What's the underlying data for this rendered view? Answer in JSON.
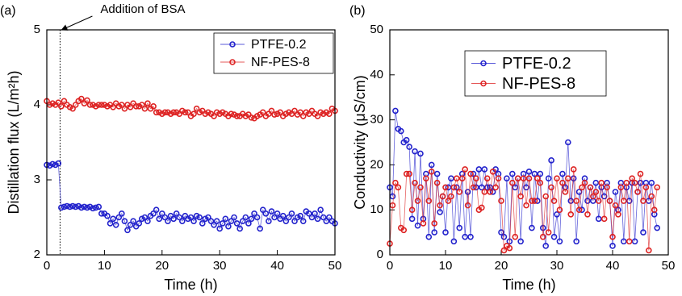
{
  "chart_data": [
    {
      "type": "line",
      "panel_label": "(a)",
      "xlabel": "Time (h)",
      "ylabel": "Distillation flux (L/m²h)",
      "xlim": [
        0,
        50
      ],
      "xticks": [
        0,
        10,
        20,
        30,
        40,
        50
      ],
      "ylim": [
        2,
        5
      ],
      "yticks": [
        2,
        3,
        4,
        5
      ],
      "legend": "upper right",
      "annotations": [
        {
          "text": "Addition of BSA",
          "x": 2.3
        }
      ],
      "x": [
        0,
        0.5,
        1,
        1.5,
        2,
        2.5,
        3,
        3.5,
        4,
        4.5,
        5,
        5.5,
        6,
        6.5,
        7,
        7.5,
        8,
        8.5,
        9,
        9.5,
        10,
        10.5,
        11,
        11.5,
        12,
        12.5,
        13,
        13.5,
        14,
        14.5,
        15,
        15.5,
        16,
        16.5,
        17,
        17.5,
        18,
        18.5,
        19,
        19.5,
        20,
        20.5,
        21,
        21.5,
        22,
        22.5,
        23,
        23.5,
        24,
        24.5,
        25,
        25.5,
        26,
        26.5,
        27,
        27.5,
        28,
        28.5,
        29,
        29.5,
        30,
        30.5,
        31,
        31.5,
        32,
        32.5,
        33,
        33.5,
        34,
        34.5,
        35,
        35.5,
        36,
        36.5,
        37,
        37.5,
        38,
        38.5,
        39,
        39.5,
        40,
        40.5,
        41,
        41.5,
        42,
        42.5,
        43,
        43.5,
        44,
        44.5,
        45,
        45.5,
        46,
        46.5,
        47,
        47.5,
        48,
        48.5,
        49,
        49.5,
        50
      ],
      "series": [
        {
          "name": "PTFE-0.2",
          "color": "#2222cc",
          "values": [
            3.2,
            3.19,
            3.21,
            3.2,
            3.22,
            2.63,
            2.64,
            2.65,
            2.64,
            2.65,
            2.64,
            2.65,
            2.63,
            2.64,
            2.63,
            2.64,
            2.62,
            2.63,
            2.64,
            2.55,
            2.55,
            2.52,
            2.42,
            2.48,
            2.4,
            2.5,
            2.55,
            2.45,
            2.33,
            2.4,
            2.45,
            2.38,
            2.42,
            2.48,
            2.5,
            2.45,
            2.52,
            2.55,
            2.6,
            2.48,
            2.55,
            2.5,
            2.45,
            2.52,
            2.48,
            2.55,
            2.5,
            2.45,
            2.52,
            2.48,
            2.5,
            2.45,
            2.52,
            2.5,
            2.42,
            2.48,
            2.5,
            2.45,
            2.4,
            2.45,
            2.35,
            2.42,
            2.48,
            2.38,
            2.45,
            2.5,
            2.42,
            2.35,
            2.45,
            2.5,
            2.42,
            2.48,
            2.55,
            2.5,
            2.35,
            2.6,
            2.55,
            2.45,
            2.58,
            2.5,
            2.55,
            2.48,
            2.52,
            2.45,
            2.5,
            2.55,
            2.45,
            2.5,
            2.52,
            2.45,
            2.58,
            2.55,
            2.5,
            2.55,
            2.48,
            2.6,
            2.5,
            2.45,
            2.5,
            2.45,
            2.42
          ]
        },
        {
          "name": "NF-PES-8",
          "color": "#dd2222",
          "values": [
            4.05,
            4.0,
            4.02,
            4.0,
            4.03,
            3.98,
            4.05,
            4.0,
            3.97,
            3.95,
            4.0,
            4.05,
            4.08,
            4.02,
            4.06,
            4.0,
            4.0,
            3.98,
            4.0,
            4.0,
            4.0,
            3.98,
            4.0,
            3.97,
            4.02,
            3.98,
            4.0,
            3.95,
            4.0,
            3.97,
            4.02,
            3.98,
            3.98,
            4.0,
            3.95,
            4.02,
            3.95,
            3.98,
            3.9,
            3.9,
            3.88,
            3.9,
            3.9,
            3.88,
            3.9,
            3.9,
            3.88,
            3.92,
            3.9,
            3.9,
            3.85,
            3.88,
            3.95,
            3.9,
            3.92,
            3.88,
            3.9,
            3.88,
            3.85,
            3.9,
            3.88,
            3.9,
            3.88,
            3.85,
            3.88,
            3.87,
            3.85,
            3.85,
            3.88,
            3.85,
            3.87,
            3.83,
            3.82,
            3.85,
            3.87,
            3.9,
            3.85,
            3.88,
            3.92,
            3.87,
            3.88,
            3.9,
            3.85,
            3.88,
            3.9,
            3.88,
            3.92,
            3.87,
            3.9,
            3.85,
            3.9,
            3.88,
            3.92,
            3.88,
            3.85,
            3.9,
            3.88,
            3.9,
            3.88,
            3.95,
            3.92
          ]
        }
      ]
    },
    {
      "type": "line",
      "panel_label": "(b)",
      "xlabel": "Time (h)",
      "ylabel": "Conductivity (μS/cm)",
      "xlim": [
        0,
        50
      ],
      "xticks": [
        0,
        10,
        20,
        30,
        40,
        50
      ],
      "ylim": [
        0,
        50
      ],
      "yticks": [
        0,
        10,
        20,
        30,
        40,
        50
      ],
      "legend": "upper center",
      "x": [
        0,
        0.5,
        1,
        1.5,
        2,
        2.5,
        3,
        3.5,
        4,
        4.5,
        5,
        5.5,
        6,
        6.5,
        7,
        7.5,
        8,
        8.5,
        9,
        9.5,
        10,
        10.5,
        11,
        11.5,
        12,
        12.5,
        13,
        13.5,
        14,
        14.5,
        15,
        15.5,
        16,
        16.5,
        17,
        17.5,
        18,
        18.5,
        19,
        19.5,
        20,
        20.5,
        21,
        21.5,
        22,
        22.5,
        23,
        23.5,
        24,
        24.5,
        25,
        25.5,
        26,
        26.5,
        27,
        27.5,
        28,
        28.5,
        29,
        29.5,
        30,
        30.5,
        31,
        31.5,
        32,
        32.5,
        33,
        33.5,
        34,
        34.5,
        35,
        35.5,
        36,
        36.5,
        37,
        37.5,
        38,
        38.5,
        39,
        39.5,
        40,
        40.5,
        41,
        41.5,
        42,
        42.5,
        43,
        43.5,
        44,
        44.5,
        45,
        45.5,
        46,
        46.5,
        47,
        47.5,
        48
      ],
      "series": [
        {
          "name": "PTFE-0.2",
          "color": "#2222cc",
          "values": [
            15,
            13,
            32,
            28,
            27.5,
            25,
            25.5,
            24,
            8,
            23,
            6.5,
            22.5,
            8,
            18,
            4,
            20,
            5,
            18,
            9.5,
            13,
            5,
            15,
            17,
            3,
            15,
            6,
            18,
            4,
            14,
            4,
            18,
            15,
            19,
            15,
            19,
            15,
            15,
            14,
            19,
            18,
            5,
            4,
            17,
            3,
            18,
            15,
            17,
            3,
            18,
            15,
            18.5,
            6,
            18,
            12,
            18,
            6,
            2,
            17,
            21,
            4,
            9,
            3,
            18,
            15,
            25,
            12,
            17,
            3,
            14,
            10,
            17,
            12,
            15,
            12,
            16,
            8,
            15,
            13,
            16,
            12,
            2,
            14,
            10,
            16,
            3,
            15,
            12,
            16,
            3,
            14,
            16,
            5,
            16,
            12,
            16,
            9,
            6
          ]
        },
        {
          "name": "NF-PES-8",
          "color": "#dd2222",
          "values": [
            2.5,
            11,
            16,
            15,
            6,
            5.5,
            18,
            18,
            10,
            16,
            12,
            15,
            7,
            17,
            12,
            18.5,
            7,
            16,
            11,
            13,
            15,
            12,
            13,
            15,
            17,
            14,
            17,
            19,
            11,
            18,
            15,
            17,
            10,
            10.5,
            14,
            17,
            14,
            18.5,
            15,
            17,
            12,
            1,
            2,
            1.5,
            16,
            4,
            17,
            13,
            17,
            11,
            17,
            12,
            12,
            17,
            16,
            4,
            13,
            5,
            15,
            12,
            17,
            10,
            16,
            14,
            17,
            9,
            19,
            12,
            10,
            15,
            16,
            9,
            15,
            13,
            14,
            12,
            16,
            8,
            15,
            12,
            4,
            11,
            9,
            15,
            12,
            16,
            3,
            17,
            16,
            14,
            18,
            12,
            15,
            1,
            13,
            10,
            15
          ]
        }
      ]
    }
  ]
}
